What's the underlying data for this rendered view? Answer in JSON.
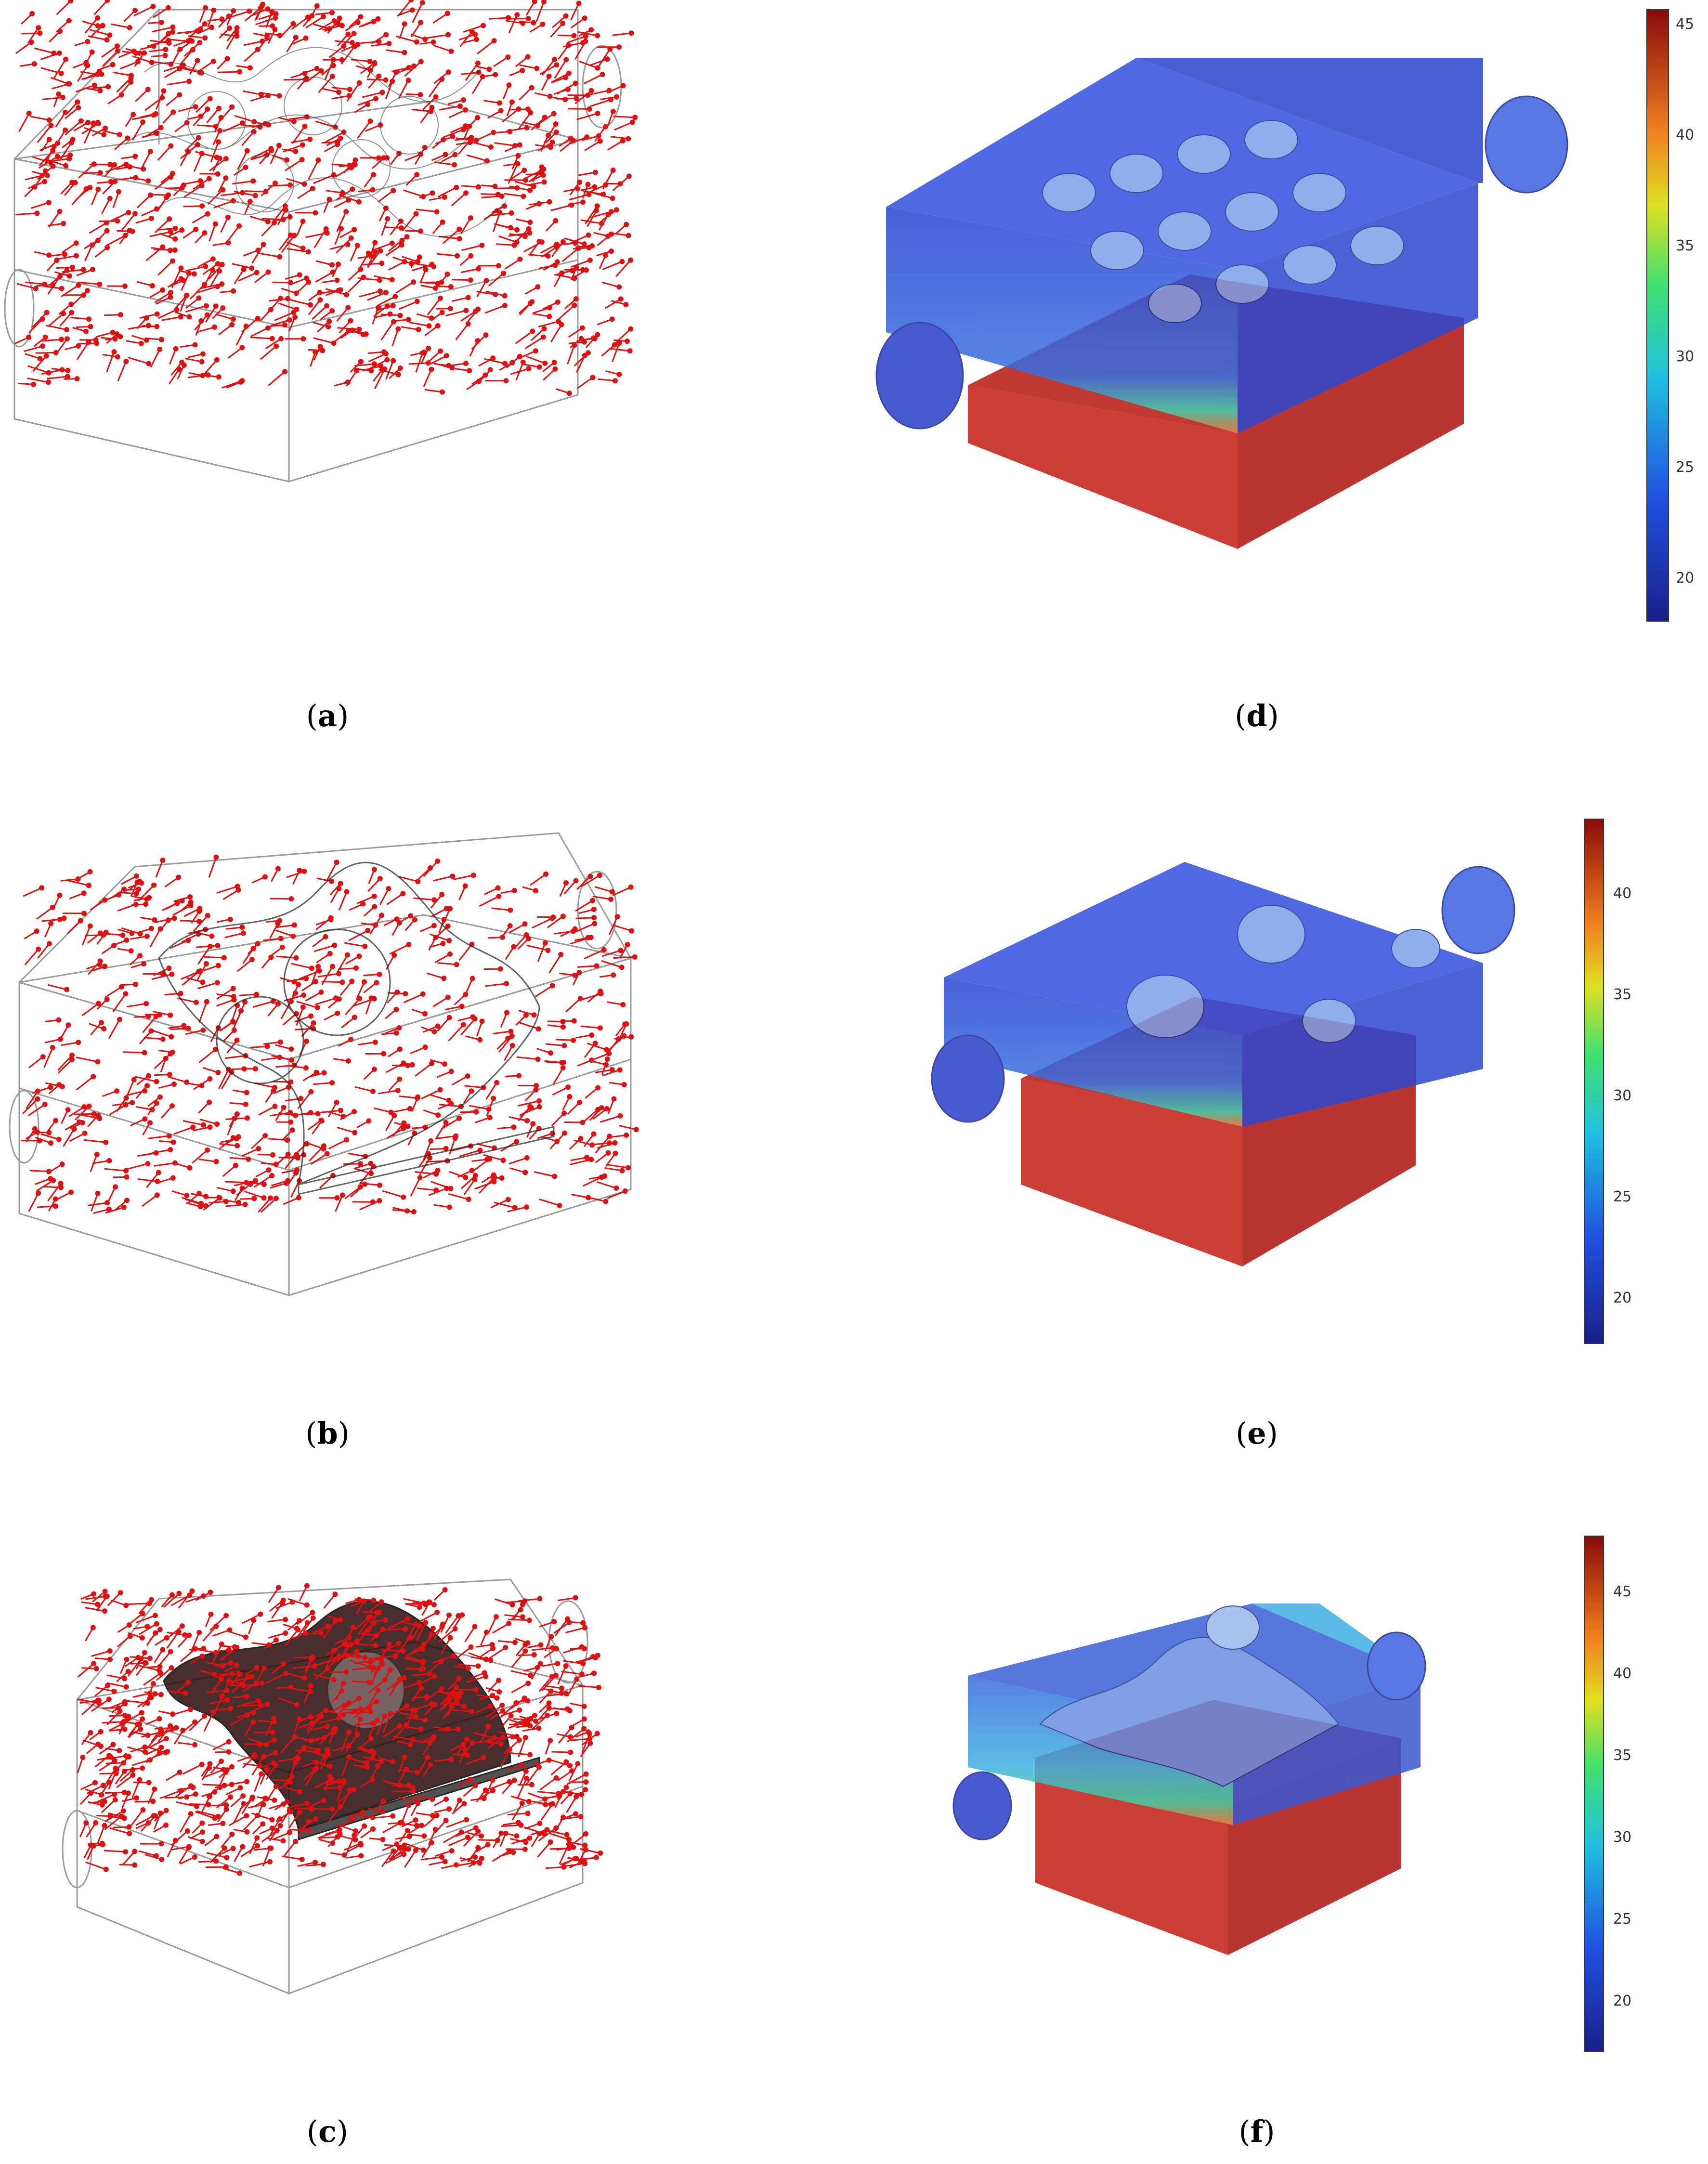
{
  "figure": {
    "panels": [
      {
        "id": "a",
        "caption": "a",
        "kind": "velocity-vectors",
        "lattice": "dense"
      },
      {
        "id": "b",
        "caption": "b",
        "kind": "velocity-vectors",
        "lattice": "medium"
      },
      {
        "id": "c",
        "caption": "c",
        "kind": "velocity-vectors",
        "lattice": "coarse"
      },
      {
        "id": "d",
        "caption": "d",
        "kind": "temperature-field",
        "colorbar": {
          "ticks": [
            "45",
            "40",
            "35",
            "30",
            "25",
            "20"
          ]
        }
      },
      {
        "id": "e",
        "caption": "e",
        "kind": "temperature-field",
        "colorbar": {
          "ticks": [
            "40",
            "35",
            "30",
            "25",
            "20"
          ]
        }
      },
      {
        "id": "f",
        "caption": "f",
        "kind": "temperature-field",
        "colorbar": {
          "ticks": [
            "45",
            "40",
            "35",
            "30",
            "25",
            "20"
          ]
        }
      }
    ],
    "colors": {
      "vector": "#e01010",
      "wire": "#9a9a9a",
      "mesh": "#1a1a1a",
      "hot": "#d93a30",
      "cold": "#2f4fd8"
    }
  }
}
